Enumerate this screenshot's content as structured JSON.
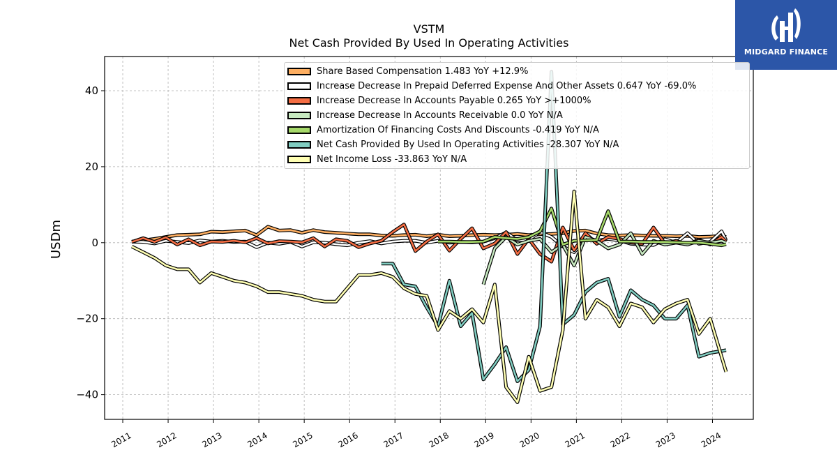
{
  "logo": {
    "text": "MIDGARD FINANCE",
    "bg": "#2c56a8"
  },
  "chart_data": {
    "type": "line",
    "title": "VSTM",
    "subtitle": "Net Cash Provided By Used In Operating Activities",
    "xlabel": "",
    "ylabel": "USDm",
    "ylim": [
      -46.5,
      49
    ],
    "xlim": [
      2010.6,
      2024.9
    ],
    "yticks": [
      -40,
      -20,
      0,
      20,
      40
    ],
    "ytick_labels": [
      "−40",
      "−20",
      "0",
      "20",
      "40"
    ],
    "xticks": [
      2011,
      2012,
      2013,
      2014,
      2015,
      2016,
      2017,
      2018,
      2019,
      2020,
      2021,
      2022,
      2023,
      2024
    ],
    "xtick_labels": [
      "2011",
      "2012",
      "2013",
      "2014",
      "2015",
      "2016",
      "2017",
      "2018",
      "2019",
      "2020",
      "2021",
      "2022",
      "2023",
      "2024"
    ],
    "grid": true,
    "legend_position": "top-right",
    "series": [
      {
        "name": "Share Based Compensation",
        "legend": "Share Based Compensation  1.483 YoY +12.9%",
        "color": "#fdae61",
        "x": [
          2011.2,
          2011.45,
          2011.7,
          2011.95,
          2012.2,
          2012.45,
          2012.7,
          2012.95,
          2013.2,
          2013.45,
          2013.7,
          2013.95,
          2014.2,
          2014.45,
          2014.7,
          2014.95,
          2015.2,
          2015.45,
          2015.7,
          2015.95,
          2016.2,
          2016.45,
          2016.7,
          2016.95,
          2017.2,
          2017.45,
          2017.7,
          2017.95,
          2018.2,
          2018.45,
          2018.7,
          2018.95,
          2019.2,
          2019.45,
          2019.7,
          2019.95,
          2020.2,
          2020.45,
          2020.7,
          2020.95,
          2021.2,
          2021.45,
          2021.7,
          2021.95,
          2022.2,
          2022.45,
          2022.7,
          2022.95,
          2023.2,
          2023.45,
          2023.7,
          2023.95,
          2024.2,
          2024.3
        ],
        "y": [
          0.3,
          0.6,
          1.0,
          1.5,
          2.0,
          2.1,
          2.2,
          2.9,
          2.8,
          3.0,
          3.2,
          2.0,
          4.2,
          3.2,
          3.3,
          2.6,
          3.3,
          2.8,
          2.6,
          2.4,
          2.2,
          2.2,
          1.9,
          1.8,
          2.0,
          2.1,
          1.7,
          2.1,
          1.7,
          1.8,
          2.0,
          2.1,
          2.0,
          2.1,
          2.3,
          2.0,
          2.2,
          2.3,
          2.5,
          3.1,
          3.2,
          2.4,
          2.0,
          1.9,
          2.0,
          1.9,
          1.8,
          1.8,
          1.7,
          1.8,
          1.5,
          1.6,
          1.8,
          1.5
        ]
      },
      {
        "name": "Increase Decrease In Prepaid Deferred Expense And Other Assets",
        "legend": "Increase Decrease In Prepaid Deferred Expense And Other Assets  0.647 YoY -69.0%",
        "color": "#ffffff",
        "x": [
          2011.2,
          2011.45,
          2011.7,
          2011.95,
          2012.2,
          2012.45,
          2012.7,
          2012.95,
          2013.2,
          2013.45,
          2013.7,
          2013.95,
          2014.2,
          2014.45,
          2014.7,
          2014.95,
          2015.2,
          2015.45,
          2015.7,
          2015.95,
          2016.2,
          2016.45,
          2016.7,
          2016.95,
          2017.2,
          2017.45,
          2017.7,
          2017.95,
          2018.2,
          2018.45,
          2018.7,
          2018.95,
          2019.2,
          2019.45,
          2019.7,
          2019.95,
          2020.2,
          2020.45,
          2020.7,
          2020.95,
          2021.2,
          2021.45,
          2021.7,
          2021.95,
          2022.2,
          2022.45,
          2022.7,
          2022.95,
          2023.2,
          2023.45,
          2023.7,
          2023.95,
          2024.2,
          2024.3
        ],
        "y": [
          0.3,
          0.2,
          -0.2,
          0.5,
          0.2,
          -0.1,
          0.6,
          0.3,
          0.5,
          0.2,
          0.3,
          -1.2,
          0.0,
          -0.3,
          0.2,
          -1.0,
          0.1,
          0.0,
          -0.4,
          -0.7,
          0.0,
          0.4,
          -0.2,
          0.3,
          0.5,
          0.5,
          0.0,
          0.5,
          0.0,
          0.2,
          0.1,
          0.3,
          1.2,
          2.7,
          0.6,
          0.8,
          2.8,
          1.5,
          -1.0,
          -2.5,
          1.0,
          0.5,
          1.0,
          0.6,
          -0.3,
          -0.5,
          -0.6,
          0.9,
          0.0,
          2.5,
          -0.3,
          0.2,
          3.0,
          0.6
        ]
      },
      {
        "name": "Increase Decrease In Accounts Payable",
        "legend": "Increase Decrease In Accounts Payable  0.265 YoY >+1000%",
        "color": "#f46d43",
        "x": [
          2011.2,
          2011.45,
          2011.7,
          2011.95,
          2012.2,
          2012.45,
          2012.7,
          2012.95,
          2013.2,
          2013.45,
          2013.7,
          2013.95,
          2014.2,
          2014.45,
          2014.7,
          2014.95,
          2015.2,
          2015.45,
          2015.7,
          2015.95,
          2016.2,
          2016.45,
          2016.7,
          2016.95,
          2017.2,
          2017.45,
          2017.7,
          2017.95,
          2018.2,
          2018.45,
          2018.7,
          2018.95,
          2019.2,
          2019.45,
          2019.7,
          2019.95,
          2020.2,
          2020.45,
          2020.7,
          2020.95,
          2021.2,
          2021.45,
          2021.7,
          2021.95,
          2022.2,
          2022.45,
          2022.7,
          2022.95,
          2023.2,
          2023.45,
          2023.7,
          2023.95,
          2024.2,
          2024.3
        ],
        "y": [
          0.2,
          1.2,
          0.2,
          1.4,
          -0.5,
          0.9,
          -0.7,
          0.3,
          0.2,
          0.5,
          0.1,
          1.2,
          -0.2,
          0.4,
          0.3,
          0.1,
          1.2,
          -1.0,
          0.9,
          0.5,
          -1.2,
          -0.2,
          0.5,
          2.8,
          4.8,
          -2.2,
          0.3,
          2.2,
          -2.1,
          1.0,
          3.8,
          -1.5,
          -0.2,
          2.8,
          -3.0,
          1.0,
          -3.0,
          -5.0,
          4.0,
          -2.0,
          2.5,
          -0.3,
          1.5,
          1.0,
          0.0,
          -0.3,
          4.0,
          -0.2,
          0.5,
          -0.5,
          0.8,
          -0.5,
          1.5,
          0.3
        ]
      },
      {
        "name": "Increase Decrease In Accounts Receivable",
        "legend": "Increase Decrease In Accounts Receivable  0.0 YoY N/A",
        "color": "#c7e9c0",
        "x": [
          2018.95,
          2019.2,
          2019.45,
          2019.7,
          2019.95,
          2020.2,
          2020.45,
          2020.7,
          2020.95,
          2021.2,
          2021.45,
          2021.7,
          2021.95,
          2022.2,
          2022.45,
          2022.7,
          2022.95,
          2023.2,
          2023.45,
          2023.7,
          2023.95,
          2024.2,
          2024.3
        ],
        "y": [
          -11.0,
          -1.5,
          1.5,
          -0.5,
          0.5,
          1.0,
          -2.5,
          -0.5,
          -6.0,
          1.5,
          0.5,
          -1.5,
          -0.5,
          2.5,
          -3.0,
          0.5,
          -0.5,
          0.0,
          -0.5,
          0.5,
          0.0,
          0.5,
          0.0
        ]
      },
      {
        "name": "Amortization Of Financing Costs And Discounts",
        "legend": "Amortization Of Financing Costs And Discounts  -0.419 YoY N/A",
        "color": "#a6d96a",
        "x": [
          2017.95,
          2018.2,
          2018.45,
          2018.7,
          2018.95,
          2019.2,
          2019.45,
          2019.7,
          2019.95,
          2020.2,
          2020.45,
          2020.7,
          2020.95,
          2021.2,
          2021.45,
          2021.7,
          2021.95,
          2022.2,
          2022.45,
          2022.7,
          2022.95,
          2023.2,
          2023.45,
          2023.7,
          2023.95,
          2024.2,
          2024.3
        ],
        "y": [
          0.3,
          0.3,
          0.2,
          0.2,
          0.3,
          1.5,
          1.2,
          1.0,
          1.5,
          3.0,
          9.0,
          -0.5,
          0.5,
          0.6,
          0.7,
          8.3,
          0.3,
          0.3,
          0.2,
          0.2,
          0.2,
          0.1,
          0.0,
          0.0,
          -0.3,
          -0.7,
          -0.4
        ]
      },
      {
        "name": "Net Cash Provided By Used In Operating Activities",
        "legend": "Net Cash Provided By Used In Operating Activities  -28.307 YoY N/A",
        "color": "#80cdc1",
        "x": [
          2016.7,
          2016.95,
          2017.2,
          2017.45,
          2017.7,
          2017.95,
          2018.2,
          2018.45,
          2018.7,
          2018.95,
          2019.2,
          2019.45,
          2019.7,
          2019.95,
          2020.2,
          2020.45,
          2020.7,
          2020.95,
          2021.2,
          2021.45,
          2021.7,
          2021.95,
          2022.2,
          2022.45,
          2022.7,
          2022.95,
          2023.2,
          2023.45,
          2023.7,
          2023.95,
          2024.2,
          2024.3
        ],
        "y": [
          -5.5,
          -5.5,
          -11.0,
          -11.5,
          -17.0,
          -22.0,
          -10.0,
          -22.0,
          -18.5,
          -36.0,
          -32.0,
          -27.5,
          -36.5,
          -33.5,
          -22.0,
          45.0,
          -21.5,
          -19.0,
          -13.0,
          -10.5,
          -9.5,
          -19.5,
          -12.5,
          -15.0,
          -16.5,
          -20.0,
          -20.0,
          -16.5,
          -30.0,
          -29.0,
          -28.5,
          -28.3
        ]
      },
      {
        "name": "Net Income Loss",
        "legend": "Net Income Loss  -33.863 YoY N/A",
        "color": "#ffffb3",
        "x": [
          2011.2,
          2011.45,
          2011.7,
          2011.95,
          2012.2,
          2012.45,
          2012.7,
          2012.95,
          2013.2,
          2013.45,
          2013.7,
          2013.95,
          2014.2,
          2014.45,
          2014.7,
          2014.95,
          2015.2,
          2015.45,
          2015.7,
          2015.95,
          2016.2,
          2016.45,
          2016.7,
          2016.95,
          2017.2,
          2017.45,
          2017.7,
          2017.95,
          2018.2,
          2018.45,
          2018.7,
          2018.95,
          2019.2,
          2019.45,
          2019.7,
          2019.95,
          2020.2,
          2020.45,
          2020.7,
          2020.95,
          2021.2,
          2021.45,
          2021.7,
          2021.95,
          2022.2,
          2022.45,
          2022.7,
          2022.95,
          2023.2,
          2023.45,
          2023.7,
          2023.95,
          2024.2,
          2024.3
        ],
        "y": [
          -1.0,
          -2.5,
          -4.0,
          -6.0,
          -7.0,
          -7.0,
          -10.5,
          -8.0,
          -9.0,
          -10.0,
          -10.5,
          -11.5,
          -13.0,
          -13.0,
          -13.5,
          -14.0,
          -15.0,
          -15.5,
          -15.5,
          -12.0,
          -8.5,
          -8.5,
          -8.0,
          -9.0,
          -12.0,
          -13.5,
          -14.0,
          -23.0,
          -18.0,
          -20.0,
          -17.5,
          -21.0,
          -11.0,
          -38.0,
          -42.0,
          -30.0,
          -39.0,
          -38.0,
          -23.0,
          13.5,
          -20.0,
          -15.0,
          -17.0,
          -22.0,
          -16.0,
          -17.0,
          -21.0,
          -17.5,
          -16.0,
          -15.0,
          -24.0,
          -20.0,
          -30.0,
          -34.0
        ]
      }
    ]
  }
}
